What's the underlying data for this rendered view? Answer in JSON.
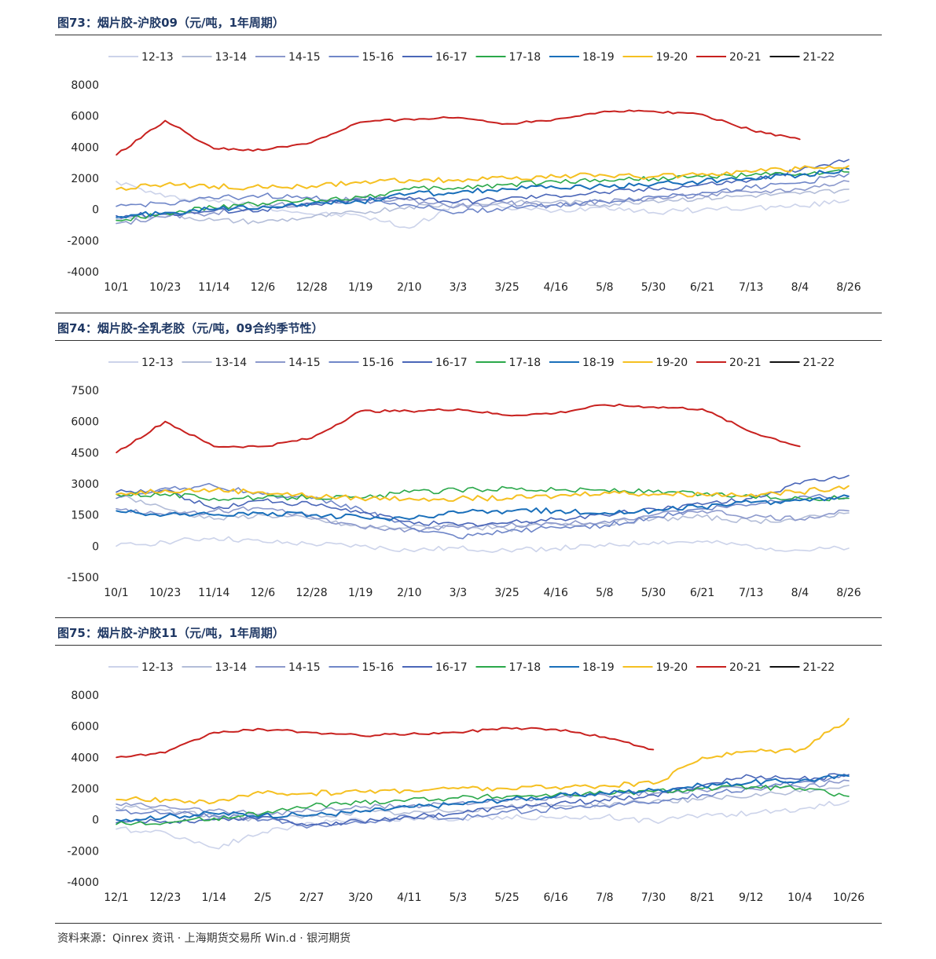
{
  "colors": {
    "12-13": "#ccd3ea",
    "13-14": "#b3bdd8",
    "14-15": "#8c99cc",
    "15-16": "#6f86c8",
    "16-17": "#4a66b8",
    "17-18": "#2aa84a",
    "18-19": "#1a6fba",
    "19-20": "#f5c021",
    "20-21": "#c8211f",
    "21-22": "#111111",
    "title": "#1f3864"
  },
  "source": "资料来源：Qinrex 资讯 · 上海期货交易所 Win.d · 银河期货",
  "chart_data": [
    {
      "type": "line",
      "title": "图73：烟片胶-沪胶09（元/吨，1年周期）",
      "categories": [
        "10/1",
        "10/23",
        "11/14",
        "12/6",
        "12/28",
        "1/19",
        "2/10",
        "3/3",
        "3/25",
        "4/16",
        "5/8",
        "5/30",
        "6/21",
        "7/13",
        "8/4",
        "8/26"
      ],
      "ylim": [
        -4000,
        8000
      ],
      "yticks": [
        "8000",
        "6000",
        "4000",
        "2000",
        "0",
        "-2000",
        "-4000"
      ],
      "legend_position": "top",
      "series": [
        {
          "name": "12-13",
          "values": [
            1800,
            800,
            600,
            200,
            -300,
            -400,
            -1200,
            400,
            100,
            -100,
            200,
            -200,
            0,
            100,
            200,
            600
          ]
        },
        {
          "name": "13-14",
          "values": [
            -600,
            -300,
            -700,
            -800,
            -500,
            -200,
            200,
            300,
            400,
            500,
            300,
            600,
            700,
            900,
            1000,
            1300
          ]
        },
        {
          "name": "14-15",
          "values": [
            -900,
            -500,
            -200,
            200,
            400,
            700,
            600,
            200,
            400,
            300,
            500,
            700,
            900,
            1100,
            1300,
            1800
          ]
        },
        {
          "name": "15-16",
          "values": [
            200,
            400,
            700,
            900,
            700,
            600,
            300,
            -200,
            100,
            300,
            500,
            800,
            1100,
            1400,
            1700,
            2300
          ]
        },
        {
          "name": "16-17",
          "values": [
            -400,
            -300,
            -100,
            0,
            300,
            600,
            800,
            500,
            700,
            900,
            1100,
            1300,
            1600,
            1900,
            2500,
            3200
          ]
        },
        {
          "name": "17-18",
          "values": [
            -700,
            -200,
            100,
            400,
            600,
            800,
            1300,
            1400,
            1600,
            1800,
            1900,
            2000,
            2100,
            2200,
            2300,
            2400
          ]
        },
        {
          "name": "18-19",
          "values": [
            -500,
            -200,
            0,
            200,
            400,
            500,
            1000,
            1100,
            1300,
            1400,
            1500,
            1600,
            1800,
            2000,
            2200,
            2600
          ]
        },
        {
          "name": "19-20",
          "values": [
            1300,
            1600,
            1500,
            1400,
            1500,
            1700,
            1900,
            1900,
            2000,
            2100,
            2200,
            2100,
            2300,
            2400,
            2600,
            2800
          ]
        },
        {
          "name": "20-21",
          "values": [
            3500,
            5700,
            3900,
            3800,
            4300,
            5600,
            5800,
            5900,
            5500,
            5800,
            6300,
            6300,
            6100,
            5100,
            4500,
            null
          ]
        },
        {
          "name": "21-22",
          "values": [
            null,
            null,
            null,
            null,
            null,
            null,
            null,
            null,
            null,
            null,
            null,
            null,
            null,
            null,
            null,
            null
          ]
        }
      ]
    },
    {
      "type": "line",
      "title": "图74：烟片胶-全乳老胶（元/吨，09合约季节性）",
      "categories": [
        "10/1",
        "10/23",
        "11/14",
        "12/6",
        "12/28",
        "1/19",
        "2/10",
        "3/3",
        "3/25",
        "4/16",
        "5/8",
        "5/30",
        "6/21",
        "7/13",
        "8/4",
        "8/26"
      ],
      "ylim": [
        -1500,
        7500
      ],
      "yticks": [
        "7500",
        "6000",
        "4500",
        "3000",
        "1500",
        "0",
        "-1500"
      ],
      "legend_position": "top",
      "series": [
        {
          "name": "12-13",
          "values": [
            0,
            200,
            400,
            200,
            100,
            0,
            -200,
            -100,
            -200,
            -100,
            0,
            200,
            200,
            0,
            -200,
            -100
          ]
        },
        {
          "name": "13-14",
          "values": [
            2500,
            1800,
            1300,
            1500,
            1300,
            900,
            900,
            1000,
            800,
            1100,
            1100,
            1300,
            1400,
            1200,
            1300,
            1600
          ]
        },
        {
          "name": "14-15",
          "values": [
            1800,
            1500,
            1700,
            1800,
            1400,
            900,
            800,
            900,
            1000,
            1100,
            1200,
            1500,
            1700,
            1400,
            1300,
            1700
          ]
        },
        {
          "name": "15-16",
          "values": [
            2300,
            2800,
            2900,
            2500,
            2300,
            1800,
            900,
            400,
            700,
            900,
            1000,
            1400,
            1800,
            2000,
            2400,
            2400
          ]
        },
        {
          "name": "16-17",
          "values": [
            2600,
            2700,
            1800,
            2200,
            2000,
            1600,
            1200,
            1000,
            1100,
            1300,
            1500,
            1800,
            2000,
            2300,
            3000,
            3400
          ]
        },
        {
          "name": "17-18",
          "values": [
            2500,
            2500,
            2300,
            2300,
            2400,
            2300,
            2600,
            2700,
            2800,
            2700,
            2700,
            2600,
            2500,
            2400,
            2300,
            2300
          ]
        },
        {
          "name": "18-19",
          "values": [
            1700,
            1500,
            1500,
            1600,
            1500,
            1400,
            1300,
            1600,
            1700,
            1700,
            1600,
            1700,
            1900,
            2100,
            2200,
            2400
          ]
        },
        {
          "name": "19-20",
          "values": [
            2500,
            2700,
            2700,
            2600,
            2400,
            2300,
            2300,
            2300,
            2300,
            2400,
            2600,
            2500,
            2500,
            2500,
            2600,
            2900
          ]
        },
        {
          "name": "20-21",
          "values": [
            4500,
            6000,
            4800,
            4800,
            5200,
            6500,
            6500,
            6600,
            6300,
            6400,
            6800,
            6700,
            6600,
            5500,
            4800,
            null
          ]
        },
        {
          "name": "21-22",
          "values": [
            null,
            null,
            null,
            null,
            null,
            null,
            null,
            null,
            null,
            null,
            null,
            null,
            null,
            null,
            null,
            null
          ]
        }
      ]
    },
    {
      "type": "line",
      "title": "图75：烟片胶-沪胶11（元/吨，1年周期）",
      "categories": [
        "12/1",
        "12/23",
        "1/14",
        "2/5",
        "2/27",
        "3/20",
        "4/11",
        "5/3",
        "5/25",
        "6/16",
        "7/8",
        "7/30",
        "8/21",
        "9/12",
        "10/4",
        "10/26"
      ],
      "ylim": [
        -4000,
        8000
      ],
      "yticks": [
        "8000",
        "6000",
        "4000",
        "2000",
        "0",
        "-2000",
        "-4000"
      ],
      "legend_position": "top",
      "series": [
        {
          "name": "12-13",
          "values": [
            -600,
            -800,
            -1800,
            -800,
            -200,
            0,
            100,
            0,
            200,
            100,
            200,
            -100,
            300,
            400,
            700,
            1200
          ]
        },
        {
          "name": "13-14",
          "values": [
            800,
            600,
            200,
            0,
            200,
            500,
            400,
            600,
            800,
            900,
            1000,
            1200,
            1300,
            1500,
            1800,
            2200
          ]
        },
        {
          "name": "14-15",
          "values": [
            1000,
            900,
            600,
            400,
            600,
            800,
            900,
            1100,
            1200,
            1400,
            1600,
            1700,
            1900,
            2000,
            2100,
            2500
          ]
        },
        {
          "name": "15-16",
          "values": [
            600,
            400,
            300,
            0,
            -400,
            -200,
            200,
            100,
            500,
            700,
            900,
            1100,
            1600,
            2000,
            2400,
            2800
          ]
        },
        {
          "name": "16-17",
          "values": [
            -200,
            -100,
            0,
            200,
            -300,
            -100,
            200,
            400,
            800,
            1000,
            1300,
            1600,
            2200,
            2800,
            2600,
            2900
          ]
        },
        {
          "name": "17-18",
          "values": [
            -300,
            -200,
            100,
            400,
            900,
            1100,
            1300,
            1400,
            1500,
            1600,
            1700,
            1800,
            2000,
            2100,
            2000,
            1500
          ]
        },
        {
          "name": "18-19",
          "values": [
            0,
            200,
            400,
            300,
            300,
            500,
            800,
            1000,
            1300,
            1500,
            1700,
            1900,
            2200,
            2400,
            2500,
            2800
          ]
        },
        {
          "name": "19-20",
          "values": [
            1300,
            1300,
            1100,
            1700,
            1700,
            1800,
            1900,
            2000,
            2000,
            2100,
            2200,
            2300,
            4000,
            4400,
            4500,
            6500
          ]
        },
        {
          "name": "20-21",
          "values": [
            4000,
            4300,
            5600,
            5800,
            5600,
            5400,
            5500,
            5600,
            5900,
            5800,
            5300,
            4500,
            null,
            null,
            null,
            null
          ]
        },
        {
          "name": "21-22",
          "values": [
            null,
            null,
            null,
            null,
            null,
            null,
            null,
            null,
            null,
            null,
            null,
            null,
            null,
            null,
            null,
            null
          ]
        }
      ]
    }
  ]
}
